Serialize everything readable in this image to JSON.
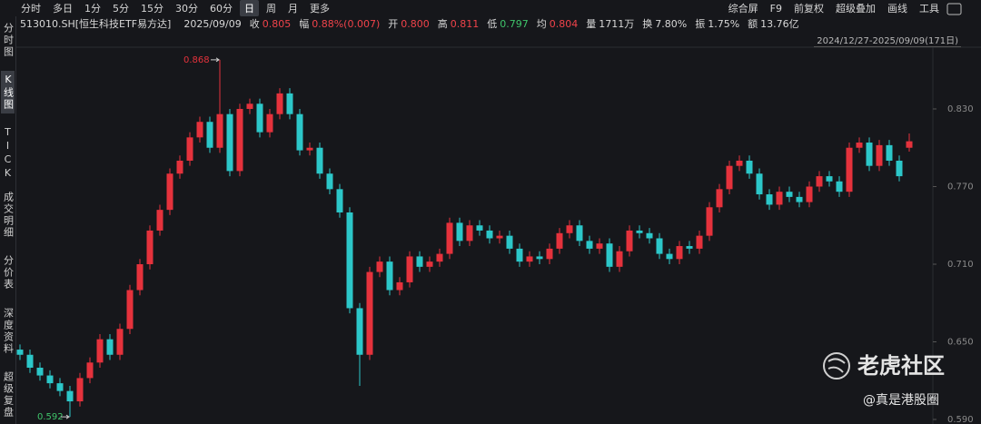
{
  "toolbar": {
    "periods": [
      "分时",
      "多日",
      "1分",
      "5分",
      "15分",
      "30分",
      "60分",
      "日",
      "周",
      "月",
      "更多"
    ],
    "tools": [
      "综合屏",
      "F9",
      "前复权",
      "超级叠加",
      "画线",
      "工具"
    ]
  },
  "info_bar": {
    "symbol": "513010.SH[恒生科技ETF易方达]",
    "date": "2025/09/09",
    "fields": [
      {
        "label": "收",
        "value": "0.805",
        "color": "#f0434a"
      },
      {
        "label": "幅",
        "value": "0.88%(0.007)",
        "color": "#f0434a"
      },
      {
        "label": "开",
        "value": "0.800",
        "color": "#f0434a"
      },
      {
        "label": "高",
        "value": "0.811",
        "color": "#f0434a"
      },
      {
        "label": "低",
        "value": "0.797",
        "color": "#3fc46a"
      },
      {
        "label": "均",
        "value": "0.804",
        "color": "#f0434a"
      },
      {
        "label": "量",
        "value": "1711万",
        "color": "#d8d8d8"
      },
      {
        "label": "换",
        "value": "7.80%",
        "color": "#d8d8d8"
      },
      {
        "label": "振",
        "value": "1.75%",
        "color": "#d8d8d8"
      },
      {
        "label": "额",
        "value": "13.76亿",
        "color": "#d8d8d8"
      }
    ]
  },
  "range": "2024/12/27-2025/09/09(171日)",
  "sidebar": [
    "分时图",
    "K线图",
    "TICK",
    "成交明细",
    "分价表",
    "深度资料",
    "超级复盘"
  ],
  "watermark": {
    "brand": "老虎社区",
    "handle": "@真是港股圈"
  },
  "chart_data": {
    "type": "candlestick",
    "up_color": "#e5323c",
    "down_color": "#2cc7c9",
    "high_label_color": "#e5323c",
    "low_label_color": "#3fc46a",
    "ylim": [
      0.5865,
      0.8777
    ],
    "yticks": [
      {
        "value": 0.83,
        "label": "0.830"
      },
      {
        "value": 0.77,
        "label": "0.770"
      },
      {
        "value": 0.71,
        "label": "0.710"
      },
      {
        "value": 0.65,
        "label": "0.650"
      },
      {
        "value": 0.59,
        "label": "0.590"
      }
    ],
    "open": [
      0.644,
      0.64,
      0.63,
      0.624,
      0.618,
      0.612,
      0.604,
      0.622,
      0.634,
      0.652,
      0.64,
      0.66,
      0.69,
      0.71,
      0.736,
      0.752,
      0.78,
      0.79,
      0.808,
      0.82,
      0.8,
      0.826,
      0.782,
      0.83,
      0.834,
      0.812,
      0.826,
      0.842,
      0.826,
      0.798,
      0.8,
      0.78,
      0.768,
      0.75,
      0.676,
      0.64,
      0.704,
      0.712,
      0.69,
      0.696,
      0.716,
      0.708,
      0.712,
      0.718,
      0.742,
      0.728,
      0.74,
      0.736,
      0.73,
      0.732,
      0.722,
      0.712,
      0.716,
      0.714,
      0.722,
      0.734,
      0.74,
      0.728,
      0.722,
      0.726,
      0.708,
      0.72,
      0.736,
      0.734,
      0.73,
      0.718,
      0.714,
      0.724,
      0.722,
      0.732,
      0.754,
      0.768,
      0.786,
      0.79,
      0.78,
      0.764,
      0.756,
      0.766,
      0.762,
      0.758,
      0.77,
      0.778,
      0.774,
      0.766,
      0.8,
      0.804,
      0.786,
      0.802,
      0.79,
      0.8
    ],
    "high": [
      0.648,
      0.644,
      0.634,
      0.628,
      0.622,
      0.616,
      0.626,
      0.638,
      0.656,
      0.656,
      0.664,
      0.694,
      0.714,
      0.74,
      0.756,
      0.784,
      0.794,
      0.812,
      0.824,
      0.824,
      0.868,
      0.83,
      0.834,
      0.838,
      0.838,
      0.83,
      0.846,
      0.846,
      0.83,
      0.804,
      0.804,
      0.784,
      0.772,
      0.754,
      0.68,
      0.708,
      0.716,
      0.716,
      0.7,
      0.72,
      0.72,
      0.716,
      0.722,
      0.746,
      0.746,
      0.744,
      0.744,
      0.74,
      0.736,
      0.736,
      0.726,
      0.72,
      0.72,
      0.726,
      0.738,
      0.744,
      0.744,
      0.732,
      0.73,
      0.73,
      0.724,
      0.74,
      0.74,
      0.738,
      0.734,
      0.722,
      0.728,
      0.728,
      0.736,
      0.758,
      0.772,
      0.79,
      0.794,
      0.794,
      0.784,
      0.768,
      0.77,
      0.77,
      0.766,
      0.774,
      0.782,
      0.782,
      0.778,
      0.804,
      0.808,
      0.808,
      0.806,
      0.806,
      0.794,
      0.811
    ],
    "low": [
      0.636,
      0.626,
      0.62,
      0.614,
      0.608,
      0.592,
      0.6,
      0.618,
      0.63,
      0.636,
      0.636,
      0.656,
      0.686,
      0.706,
      0.732,
      0.748,
      0.776,
      0.786,
      0.804,
      0.796,
      0.796,
      0.778,
      0.778,
      0.826,
      0.808,
      0.808,
      0.822,
      0.822,
      0.794,
      0.794,
      0.776,
      0.764,
      0.746,
      0.672,
      0.616,
      0.636,
      0.7,
      0.686,
      0.686,
      0.692,
      0.704,
      0.704,
      0.708,
      0.714,
      0.724,
      0.724,
      0.732,
      0.726,
      0.726,
      0.718,
      0.708,
      0.708,
      0.71,
      0.71,
      0.718,
      0.73,
      0.724,
      0.718,
      0.718,
      0.704,
      0.704,
      0.716,
      0.73,
      0.726,
      0.714,
      0.71,
      0.71,
      0.718,
      0.718,
      0.728,
      0.75,
      0.764,
      0.782,
      0.776,
      0.76,
      0.752,
      0.752,
      0.758,
      0.754,
      0.754,
      0.766,
      0.77,
      0.762,
      0.762,
      0.796,
      0.782,
      0.782,
      0.786,
      0.774,
      0.797
    ],
    "close": [
      0.64,
      0.63,
      0.624,
      0.618,
      0.612,
      0.604,
      0.622,
      0.634,
      0.652,
      0.64,
      0.66,
      0.69,
      0.71,
      0.736,
      0.752,
      0.78,
      0.79,
      0.808,
      0.82,
      0.8,
      0.826,
      0.782,
      0.83,
      0.834,
      0.812,
      0.826,
      0.842,
      0.826,
      0.798,
      0.8,
      0.78,
      0.768,
      0.75,
      0.676,
      0.64,
      0.704,
      0.712,
      0.69,
      0.696,
      0.716,
      0.708,
      0.712,
      0.718,
      0.742,
      0.728,
      0.74,
      0.736,
      0.73,
      0.732,
      0.722,
      0.712,
      0.716,
      0.714,
      0.722,
      0.734,
      0.74,
      0.728,
      0.722,
      0.726,
      0.708,
      0.72,
      0.736,
      0.734,
      0.73,
      0.718,
      0.714,
      0.724,
      0.722,
      0.732,
      0.754,
      0.768,
      0.786,
      0.79,
      0.78,
      0.764,
      0.756,
      0.766,
      0.762,
      0.758,
      0.77,
      0.778,
      0.774,
      0.766,
      0.8,
      0.804,
      0.786,
      0.802,
      0.79,
      0.778,
      0.805
    ]
  }
}
